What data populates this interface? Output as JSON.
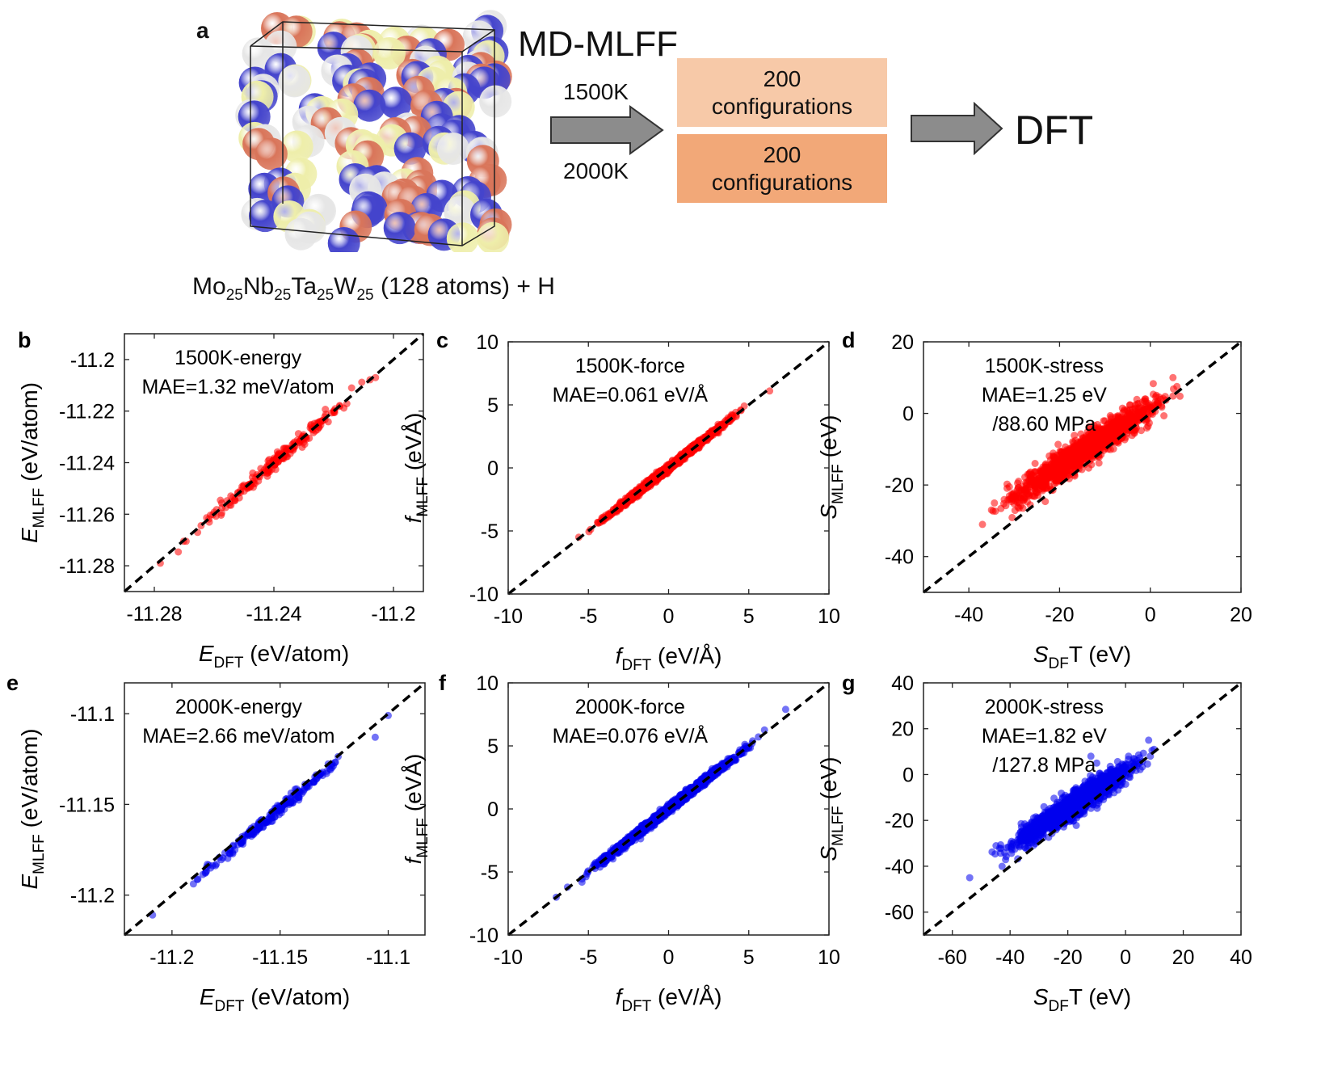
{
  "schematic": {
    "panel_letter": "a",
    "title": "MD-MLFF",
    "temp_high_label": "1500K",
    "temp_low_label": "2000K",
    "box_top": {
      "count": "200",
      "label": "configurations",
      "color": "#f7c9a8"
    },
    "box_bottom": {
      "count": "200",
      "label": "configurations",
      "color": "#f2a878"
    },
    "target": "DFT",
    "formula": {
      "els": [
        "Mo",
        "Nb",
        "Ta",
        "W"
      ],
      "subs": [
        "25",
        "25",
        "25",
        "25"
      ],
      "suffix": "(128 atoms) + H"
    },
    "atom_colors": {
      "Mo": "#d9755a",
      "Nb": "#4444cc",
      "Ta": "#eeeeaa",
      "W": "#e6e6e6"
    },
    "arrow_color": "#8c8c8c"
  },
  "chart_data": [
    {
      "panel": "b",
      "type": "scatter",
      "series_color": "#ff0000",
      "label_line1": "1500K-energy",
      "label_line2": "MAE=1.32 meV/atom",
      "label_line3": "",
      "xlim": [
        -11.29,
        -11.19
      ],
      "ylim": [
        -11.29,
        -11.19
      ],
      "xticks": [
        -11.28,
        -11.24,
        -11.2
      ],
      "xtick_labels": [
        "-11.28",
        "-11.24",
        "-11.2"
      ],
      "yticks": [
        -11.28,
        -11.26,
        -11.24,
        -11.22,
        -11.2
      ],
      "ytick_labels": [
        "-11.28",
        "-11.26",
        "-11.24",
        "-11.22",
        "-11.2"
      ],
      "xlabel_main": "E",
      "xlabel_sub": "DFT",
      "xlabel_tail": " (eV/atom)",
      "ylabel_main": "E",
      "ylabel_sub": "MLFF",
      "ylabel_tail": " (eV/atom)",
      "diag": true,
      "points": {
        "n": 200,
        "x_range": [
          -11.275,
          -11.205
        ],
        "slope": 1.0,
        "offset": 0.0,
        "noise": 0.0014,
        "seed": 11
      },
      "extra_points": [
        [
          -11.278,
          -11.279
        ],
        [
          -11.206,
          -11.207
        ],
        [
          -11.214,
          -11.211
        ]
      ]
    },
    {
      "panel": "c",
      "type": "scatter",
      "series_color": "#ff0000",
      "label_line1": "1500K-force",
      "label_line2": "MAE=0.061 eV/Å",
      "label_line3": "",
      "xlim": [
        -10,
        10
      ],
      "ylim": [
        -10,
        10
      ],
      "xticks": [
        -10,
        -5,
        0,
        5,
        10
      ],
      "xtick_labels": [
        "-10",
        "-5",
        "0",
        "5",
        "10"
      ],
      "yticks": [
        -10,
        -5,
        0,
        5,
        10
      ],
      "ytick_labels": [
        "-10",
        "-5",
        "0",
        "5",
        "10"
      ],
      "xlabel_main": "f",
      "xlabel_sub": "DFT",
      "xlabel_tail": " (eV/Å)",
      "ylabel_main": "f",
      "ylabel_sub": "MLFF",
      "ylabel_tail": " (eVÅ)",
      "diag": true,
      "points": {
        "n": 1400,
        "x_range": [
          -5.4,
          5.3
        ],
        "slope": 1.0,
        "offset": 0.0,
        "noise": 0.12,
        "seed": 23
      },
      "extra_points": [
        [
          6.3,
          6.1
        ],
        [
          -5.6,
          -5.5
        ]
      ]
    },
    {
      "panel": "d",
      "type": "scatter",
      "series_color": "#ff0000",
      "label_line1": "1500K-stress",
      "label_line2": "MAE=1.25 eV",
      "label_line3": "/88.60 MPa",
      "xlim": [
        -50,
        20
      ],
      "ylim": [
        -50,
        20
      ],
      "xticks": [
        -40,
        -20,
        0,
        20
      ],
      "xtick_labels": [
        "-40",
        "-20",
        "0",
        "20"
      ],
      "yticks": [
        -40,
        -20,
        0,
        20
      ],
      "ytick_labels": [
        "-40",
        "-20",
        "0",
        "20"
      ],
      "xlabel_main": "S",
      "xlabel_sub": "DF",
      "xlabel_tail": "T (eV)",
      "ylabel_main": "S",
      "ylabel_sub": "MLFF",
      "ylabel_tail": " (eV)",
      "diag": true,
      "points": {
        "n": 1400,
        "x_range": [
          -37,
          8
        ],
        "slope": 0.82,
        "offset": 1.5,
        "noise": 2.0,
        "seed": 37
      },
      "extra_points": [
        [
          -37,
          -31
        ],
        [
          5,
          10
        ],
        [
          -35,
          -27
        ]
      ]
    },
    {
      "panel": "e",
      "type": "scatter",
      "series_color": "#0000ee",
      "label_line1": "2000K-energy",
      "label_line2": "MAE=2.66 meV/atom",
      "label_line3": "",
      "xlim": [
        -11.222,
        -11.083
      ],
      "ylim": [
        -11.222,
        -11.083
      ],
      "xticks": [
        -11.2,
        -11.15,
        -11.1
      ],
      "xtick_labels": [
        "-11.2",
        "-11.15",
        "-11.1"
      ],
      "yticks": [
        -11.2,
        -11.15,
        -11.1
      ],
      "ytick_labels": [
        "-11.2",
        "-11.15",
        "-11.1"
      ],
      "xlabel_main": "E",
      "xlabel_sub": "DFT",
      "xlabel_tail": " (eV/atom)",
      "ylabel_main": "E",
      "ylabel_sub": "MLFF",
      "ylabel_tail": " (eV/atom)",
      "diag": true,
      "points": {
        "n": 200,
        "x_range": [
          -11.2,
          -11.105
        ],
        "slope": 1.0,
        "offset": -0.0025,
        "noise": 0.0016,
        "seed": 53
      },
      "extra_points": [
        [
          -11.209,
          -11.211
        ],
        [
          -11.1,
          -11.101
        ],
        [
          -11.106,
          -11.113
        ]
      ]
    },
    {
      "panel": "f",
      "type": "scatter",
      "series_color": "#0000ee",
      "label_line1": "2000K-force",
      "label_line2": "MAE=0.076 eV/Å",
      "label_line3": "",
      "xlim": [
        -10,
        10
      ],
      "ylim": [
        -10,
        10
      ],
      "xticks": [
        -10,
        -5,
        0,
        5,
        10
      ],
      "xtick_labels": [
        "-10",
        "-5",
        "0",
        "5",
        "10"
      ],
      "yticks": [
        -10,
        -5,
        0,
        5,
        10
      ],
      "ytick_labels": [
        "-10",
        "-5",
        "0",
        "5",
        "10"
      ],
      "xlabel_main": "f",
      "xlabel_sub": "DFT",
      "xlabel_tail": " (eV/Å)",
      "ylabel_main": "f",
      "ylabel_sub": "MLFF",
      "ylabel_tail": " (eVÅ)",
      "diag": true,
      "points": {
        "n": 1500,
        "x_range": [
          -6.0,
          6.3
        ],
        "slope": 1.0,
        "offset": 0.0,
        "noise": 0.16,
        "seed": 71
      },
      "extra_points": [
        [
          7.3,
          7.9
        ],
        [
          -7.0,
          -7.0
        ],
        [
          -6.3,
          -6.2
        ]
      ]
    },
    {
      "panel": "g",
      "type": "scatter",
      "series_color": "#0000ee",
      "label_line1": "2000K-stress",
      "label_line2": "MAE=1.82 eV",
      "label_line3": "/127.8 MPa",
      "xlim": [
        -70,
        40
      ],
      "ylim": [
        -70,
        40
      ],
      "xticks": [
        -60,
        -40,
        -20,
        0,
        20,
        40
      ],
      "xtick_labels": [
        "-60",
        "-40",
        "-20",
        "0",
        "20",
        "40"
      ],
      "yticks": [
        -60,
        -40,
        -20,
        0,
        20,
        40
      ],
      "ytick_labels": [
        "-60",
        "-40",
        "-20",
        "0",
        "20",
        "40"
      ],
      "xlabel_main": "S",
      "xlabel_sub": "DF",
      "xlabel_tail": "T (eV)",
      "ylabel_main": "S",
      "ylabel_sub": "MLFF",
      "ylabel_tail": " (eV)",
      "diag": true,
      "points": {
        "n": 1400,
        "x_range": [
          -48,
          12
        ],
        "slope": 0.82,
        "offset": 1.5,
        "noise": 2.8,
        "seed": 89
      },
      "extra_points": [
        [
          -54,
          -45
        ],
        [
          8,
          15
        ],
        [
          -12,
          8
        ],
        [
          -10,
          5
        ]
      ]
    }
  ]
}
